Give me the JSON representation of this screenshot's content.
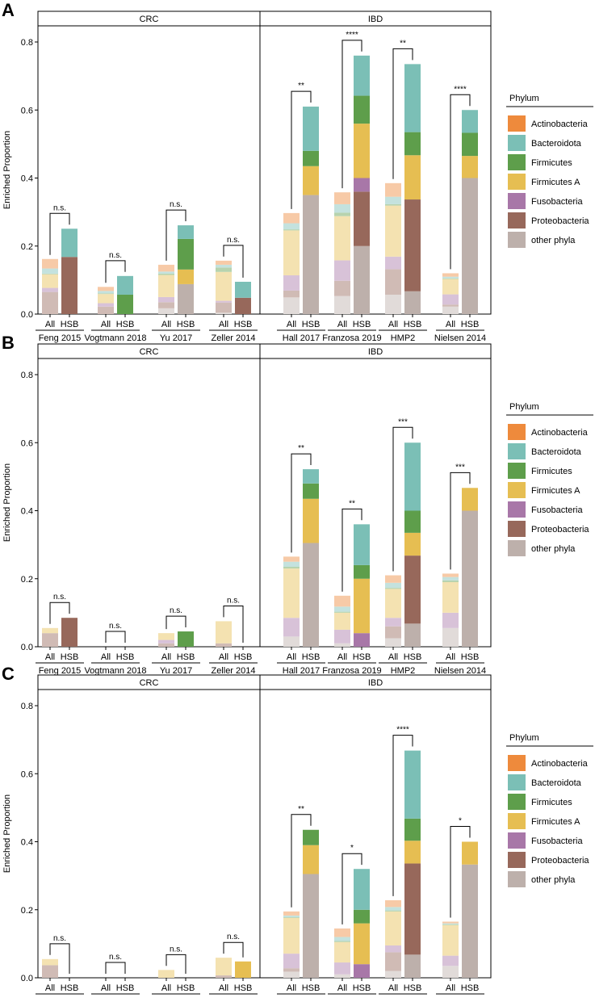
{
  "chart_data": {
    "type": "stacked-bar",
    "ylabel": "Enriched Proportion",
    "ylim": [
      0,
      0.8
    ],
    "yticks": [
      "0.0",
      "0.2",
      "0.4",
      "0.6",
      "0.8"
    ],
    "groups": [
      "CRC",
      "IBD"
    ],
    "datasets": [
      {
        "name": "Feng 2015",
        "group": "CRC"
      },
      {
        "name": "Vogtmann 2018",
        "group": "CRC"
      },
      {
        "name": "Yu 2017",
        "group": "CRC"
      },
      {
        "name": "Zeller 2014",
        "group": "CRC"
      },
      {
        "name": "Hall 2017",
        "group": "IBD"
      },
      {
        "name": "Franzosa 2019",
        "group": "IBD"
      },
      {
        "name": "HMP2",
        "group": "IBD"
      },
      {
        "name": "Nielsen 2014",
        "group": "IBD"
      }
    ],
    "bar_labels": [
      "All",
      "HSB"
    ],
    "legend": {
      "title": "Phylum",
      "entries": [
        "Actinobacteria",
        "Bacteroidota",
        "Firmicutes",
        "Firmicutes A",
        "Fusobacteria",
        "Proteobacteria",
        "other phyla"
      ],
      "colors": [
        "#EE8A3C",
        "#7BBFB6",
        "#5E9E4B",
        "#E6BE52",
        "#A877A8",
        "#97685B",
        "#BDB0AB"
      ]
    },
    "stack_order_bottom_to_top": [
      "other phyla",
      "Proteobacteria",
      "Fusobacteria",
      "Firmicutes A",
      "Firmicutes",
      "Bacteroidota",
      "Actinobacteria"
    ],
    "panels": [
      {
        "label": "A",
        "significance": [
          "n.s.",
          "n.s.",
          "n.s.",
          "n.s.",
          "**",
          "****",
          "**",
          "****"
        ],
        "all": [
          [
            0.028,
            0.015,
            0.002,
            0.04,
            0.012,
            0.065,
            0.0
          ],
          [
            0.012,
            0.007,
            0.002,
            0.027,
            0.01,
            0.022,
            0.0
          ],
          [
            0.02,
            0.006,
            0.004,
            0.065,
            0.015,
            0.018,
            0.017
          ],
          [
            0.012,
            0.008,
            0.013,
            0.085,
            0.005,
            0.03,
            0.004
          ],
          [
            0.03,
            0.018,
            0.003,
            0.132,
            0.045,
            0.02,
            0.049
          ],
          [
            0.035,
            0.025,
            0.01,
            0.13,
            0.06,
            0.045,
            0.053
          ],
          [
            0.04,
            0.022,
            0.004,
            0.15,
            0.037,
            0.075,
            0.057
          ],
          [
            0.01,
            0.005,
            0.002,
            0.045,
            0.03,
            0.006,
            0.022
          ]
        ],
        "hsb": [
          [
            0.0,
            0.083,
            0.0,
            0.0,
            0.0,
            0.168,
            0.0
          ],
          [
            0.0,
            0.055,
            0.057,
            0.0,
            0.0,
            0.0,
            0.0
          ],
          [
            0.0,
            0.04,
            0.09,
            0.043,
            0.0,
            0.0,
            0.088
          ],
          [
            0.0,
            0.047,
            0.0,
            0.0,
            0.0,
            0.048,
            0.0
          ],
          [
            0.0,
            0.13,
            0.045,
            0.085,
            0.0,
            0.0,
            0.35
          ],
          [
            0.0,
            0.118,
            0.082,
            0.16,
            0.04,
            0.16,
            0.2
          ],
          [
            0.0,
            0.2,
            0.068,
            0.13,
            0.0,
            0.27,
            0.067
          ],
          [
            0.0,
            0.067,
            0.068,
            0.065,
            0.0,
            0.0,
            0.4
          ]
        ]
      },
      {
        "label": "B",
        "significance": [
          "n.s.",
          "n.s.",
          "n.s.",
          "n.s.",
          "**",
          "**",
          "***",
          "***"
        ],
        "all": [
          [
            0.0,
            0.0,
            0.0,
            0.015,
            0.0,
            0.04,
            0.0
          ],
          [
            0.0,
            0.0,
            0.0,
            0.0,
            0.0,
            0.0,
            0.0
          ],
          [
            0.0,
            0.0,
            0.0,
            0.02,
            0.01,
            0.01,
            0.0
          ],
          [
            0.0,
            0.0,
            0.0,
            0.065,
            0.0,
            0.01,
            0.0
          ],
          [
            0.015,
            0.015,
            0.005,
            0.145,
            0.055,
            0.0,
            0.03
          ],
          [
            0.032,
            0.015,
            0.003,
            0.05,
            0.04,
            0.0,
            0.01
          ],
          [
            0.022,
            0.015,
            0.003,
            0.085,
            0.025,
            0.035,
            0.025
          ],
          [
            0.01,
            0.01,
            0.005,
            0.09,
            0.045,
            0.0,
            0.055
          ]
        ],
        "hsb": [
          [
            0.0,
            0.0,
            0.0,
            0.0,
            0.0,
            0.085,
            0.0
          ],
          [
            0.0,
            0.0,
            0.0,
            0.0,
            0.0,
            0.0,
            0.0
          ],
          [
            0.0,
            0.0,
            0.045,
            0.0,
            0.0,
            0.0,
            0.0
          ],
          [
            0.0,
            0.0,
            0.0,
            0.0,
            0.0,
            0.0,
            0.0
          ],
          [
            0.0,
            0.042,
            0.045,
            0.13,
            0.0,
            0.0,
            0.305
          ],
          [
            0.0,
            0.12,
            0.04,
            0.16,
            0.04,
            0.0,
            0.0
          ],
          [
            0.0,
            0.2,
            0.065,
            0.067,
            0.0,
            0.2,
            0.068
          ],
          [
            0.0,
            0.0,
            0.0,
            0.067,
            0.0,
            0.0,
            0.4
          ]
        ]
      },
      {
        "label": "C",
        "significance": [
          "n.s.",
          "n.s.",
          "n.s.",
          "n.s.",
          "**",
          "*",
          "****",
          "*"
        ],
        "all": [
          [
            0.0,
            0.0,
            0.0,
            0.018,
            0.0,
            0.037,
            0.0
          ],
          [
            0.0,
            0.0,
            0.0,
            0.0,
            0.0,
            0.0,
            0.0
          ],
          [
            0.0,
            0.0,
            0.0,
            0.023,
            0.0,
            0.0,
            0.0
          ],
          [
            0.0,
            0.0,
            0.0,
            0.052,
            0.0,
            0.007,
            0.0
          ],
          [
            0.012,
            0.005,
            0.002,
            0.105,
            0.043,
            0.01,
            0.018
          ],
          [
            0.025,
            0.012,
            0.003,
            0.06,
            0.035,
            0.0,
            0.01
          ],
          [
            0.02,
            0.01,
            0.003,
            0.1,
            0.02,
            0.055,
            0.02
          ],
          [
            0.005,
            0.003,
            0.002,
            0.09,
            0.03,
            0.0,
            0.035
          ]
        ],
        "hsb": [
          [
            0.0,
            0.0,
            0.0,
            0.0,
            0.0,
            0.0,
            0.0
          ],
          [
            0.0,
            0.0,
            0.0,
            0.0,
            0.0,
            0.0,
            0.0
          ],
          [
            0.0,
            0.0,
            0.0,
            0.0,
            0.0,
            0.0,
            0.0
          ],
          [
            0.0,
            0.0,
            0.0,
            0.048,
            0.0,
            0.0,
            0.0
          ],
          [
            0.0,
            0.0,
            0.045,
            0.085,
            0.0,
            0.0,
            0.305
          ],
          [
            0.0,
            0.12,
            0.04,
            0.12,
            0.04,
            0.0,
            0.0
          ],
          [
            0.0,
            0.2,
            0.065,
            0.067,
            0.0,
            0.268,
            0.068
          ],
          [
            0.0,
            0.0,
            0.0,
            0.067,
            0.0,
            0.0,
            0.333
          ]
        ]
      }
    ]
  }
}
